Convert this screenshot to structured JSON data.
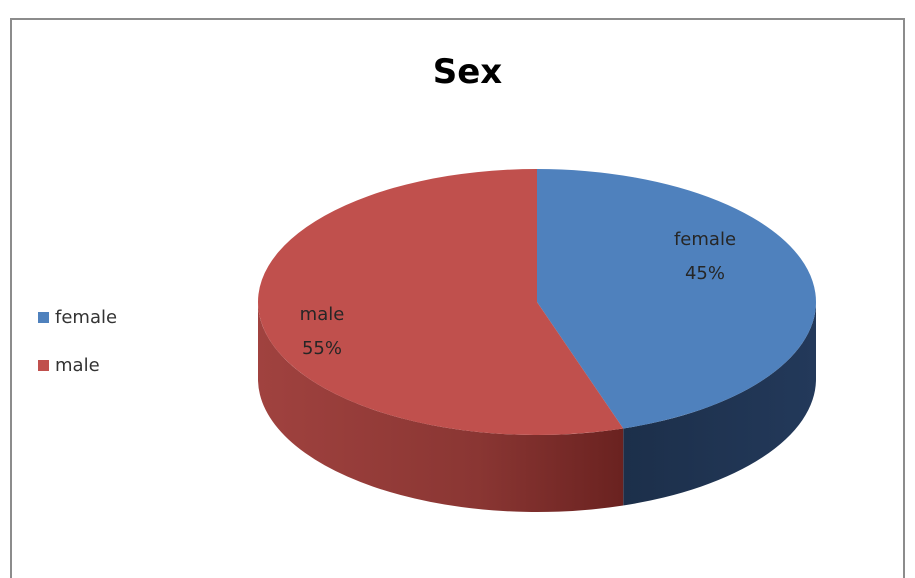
{
  "chart_data": {
    "type": "pie",
    "title": "Sex",
    "legend_position": "left",
    "slices": [
      {
        "label": "female",
        "value": 45,
        "percent_label": "45%",
        "color": "#4f81bd",
        "side_color": "#1f3552"
      },
      {
        "label": "male",
        "value": 55,
        "percent_label": "55%",
        "color": "#c0504d",
        "side_color": "#7a2b28"
      }
    ]
  }
}
